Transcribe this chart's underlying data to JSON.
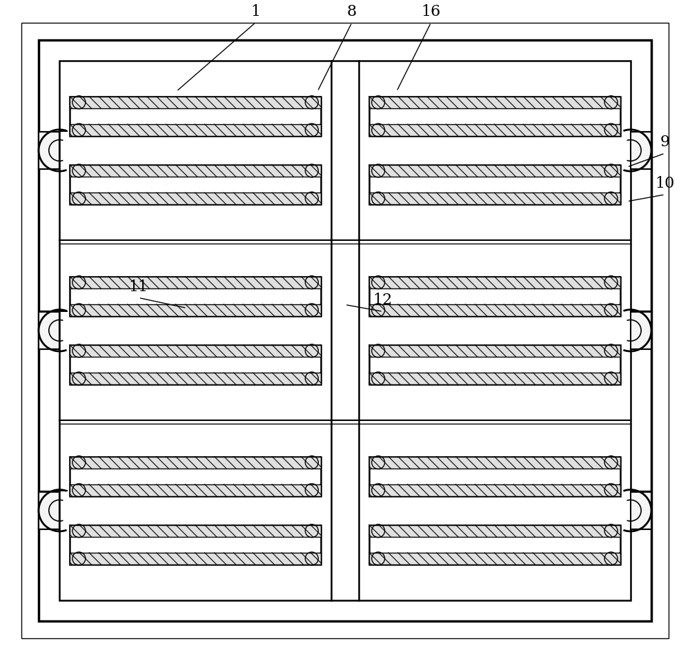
{
  "bg_color": "#ffffff",
  "line_color": "#000000",
  "figsize": [
    10.0,
    9.55
  ],
  "dpi": 100
}
